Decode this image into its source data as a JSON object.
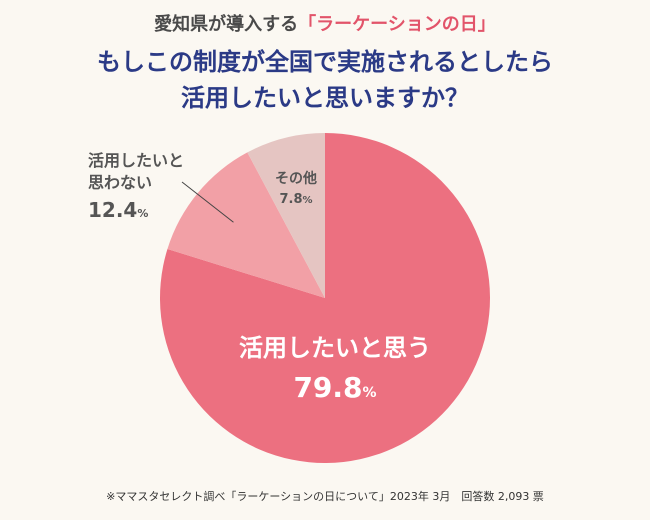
{
  "header": {
    "supertitle_prefix": "愛知県が導入する",
    "supertitle_accent": "「ラーケーションの日」",
    "title_line1": "もしこの制度が全国で実施されるとしたら",
    "title_line2": "活用したいと思いますか？"
  },
  "chart_data": {
    "type": "pie",
    "slices": [
      {
        "label": "活用したいと思う",
        "value": 79.8,
        "value_text": "79.8",
        "color": "#ec7080"
      },
      {
        "label_line1": "活用したいと",
        "label_line2": "思わない",
        "value": 12.4,
        "value_text": "12.4",
        "color": "#f2a0a6"
      },
      {
        "label": "その他",
        "value": 7.8,
        "value_text": "7.8",
        "color": "#e5c5c2"
      }
    ],
    "unit": "%"
  },
  "footer": {
    "source": "※ママスタセレクト調べ「ラーケーションの日について」2023年 3月　回答数 2,093 票"
  }
}
